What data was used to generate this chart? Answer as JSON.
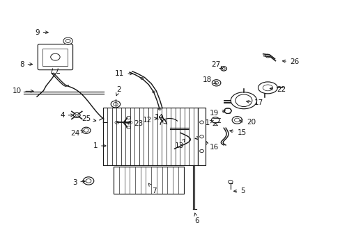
{
  "bg_color": "#ffffff",
  "line_color": "#1a1a1a",
  "figsize": [
    4.89,
    3.6
  ],
  "dpi": 100,
  "label_fontsize": 7.5,
  "lw": 0.85,
  "labels": [
    [
      1,
      0.315,
      0.415,
      0.282,
      0.415
    ],
    [
      2,
      0.338,
      0.617,
      0.338,
      0.645
    ],
    [
      3,
      0.253,
      0.272,
      0.22,
      0.265
    ],
    [
      4,
      0.218,
      0.54,
      0.183,
      0.54
    ],
    [
      5,
      0.682,
      0.23,
      0.71,
      0.23
    ],
    [
      6,
      0.573,
      0.143,
      0.573,
      0.108
    ],
    [
      7,
      0.43,
      0.27,
      0.445,
      0.232
    ],
    [
      8,
      0.095,
      0.748,
      0.062,
      0.748
    ],
    [
      9,
      0.142,
      0.878,
      0.108,
      0.878
    ],
    [
      10,
      0.098,
      0.638,
      0.055,
      0.638
    ],
    [
      11,
      0.395,
      0.71,
      0.362,
      0.71
    ],
    [
      12,
      0.468,
      0.53,
      0.445,
      0.52
    ],
    [
      13,
      0.545,
      0.445,
      0.54,
      0.415
    ],
    [
      14,
      0.495,
      0.498,
      0.48,
      0.53
    ],
    [
      15,
      0.67,
      0.478,
      0.7,
      0.47
    ],
    [
      16,
      0.59,
      0.42,
      0.618,
      0.408
    ],
    [
      17,
      0.72,
      0.598,
      0.752,
      0.59
    ],
    [
      18,
      0.64,
      0.668,
      0.625,
      0.685
    ],
    [
      19,
      0.672,
      0.56,
      0.645,
      0.548
    ],
    [
      20,
      0.7,
      0.52,
      0.728,
      0.51
    ],
    [
      21,
      0.635,
      0.52,
      0.618,
      0.508
    ],
    [
      22,
      0.79,
      0.65,
      0.818,
      0.645
    ],
    [
      23,
      0.36,
      0.51,
      0.39,
      0.505
    ],
    [
      24,
      0.248,
      0.48,
      0.228,
      0.465
    ],
    [
      25,
      0.285,
      0.515,
      0.262,
      0.525
    ],
    [
      26,
      0.828,
      0.762,
      0.858,
      0.758
    ],
    [
      27,
      0.658,
      0.728,
      0.65,
      0.748
    ]
  ]
}
